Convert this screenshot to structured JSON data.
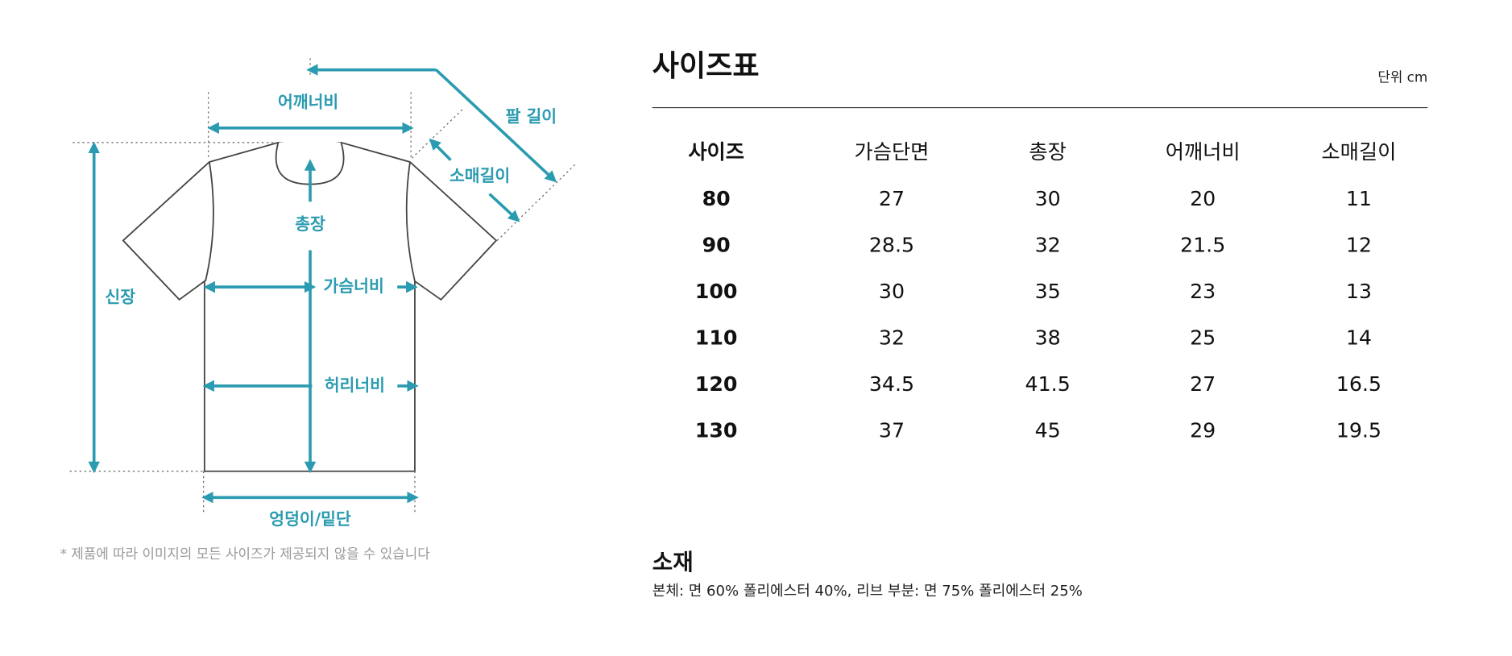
{
  "diagram": {
    "labels": {
      "shoulder": "어깨너비",
      "arm": "팔 길이",
      "sleeve": "소매길이",
      "total": "총장",
      "height": "신장",
      "chest": "가슴너비",
      "waist": "허리너비",
      "hem": "엉덩이/밑단"
    },
    "note": "* 제품에 따라 이미지의 모든 사이즈가 제공되지 않을 수 있습니다"
  },
  "size_table": {
    "title": "사이즈표",
    "unit": "단위 cm",
    "headers": [
      "사이즈",
      "가슴단면",
      "총장",
      "어깨너비",
      "소매길이"
    ],
    "rows": [
      [
        "80",
        "27",
        "30",
        "20",
        "11"
      ],
      [
        "90",
        "28.5",
        "32",
        "21.5",
        "12"
      ],
      [
        "100",
        "30",
        "35",
        "23",
        "13"
      ],
      [
        "110",
        "32",
        "38",
        "25",
        "14"
      ],
      [
        "120",
        "34.5",
        "41.5",
        "27",
        "16.5"
      ],
      [
        "130",
        "37",
        "45",
        "29",
        "19.5"
      ]
    ]
  },
  "material": {
    "title": "소재",
    "text": "본체: 면 60% 폴리에스터 40%, 리브 부분: 면 75% 폴리에스터 25%"
  }
}
